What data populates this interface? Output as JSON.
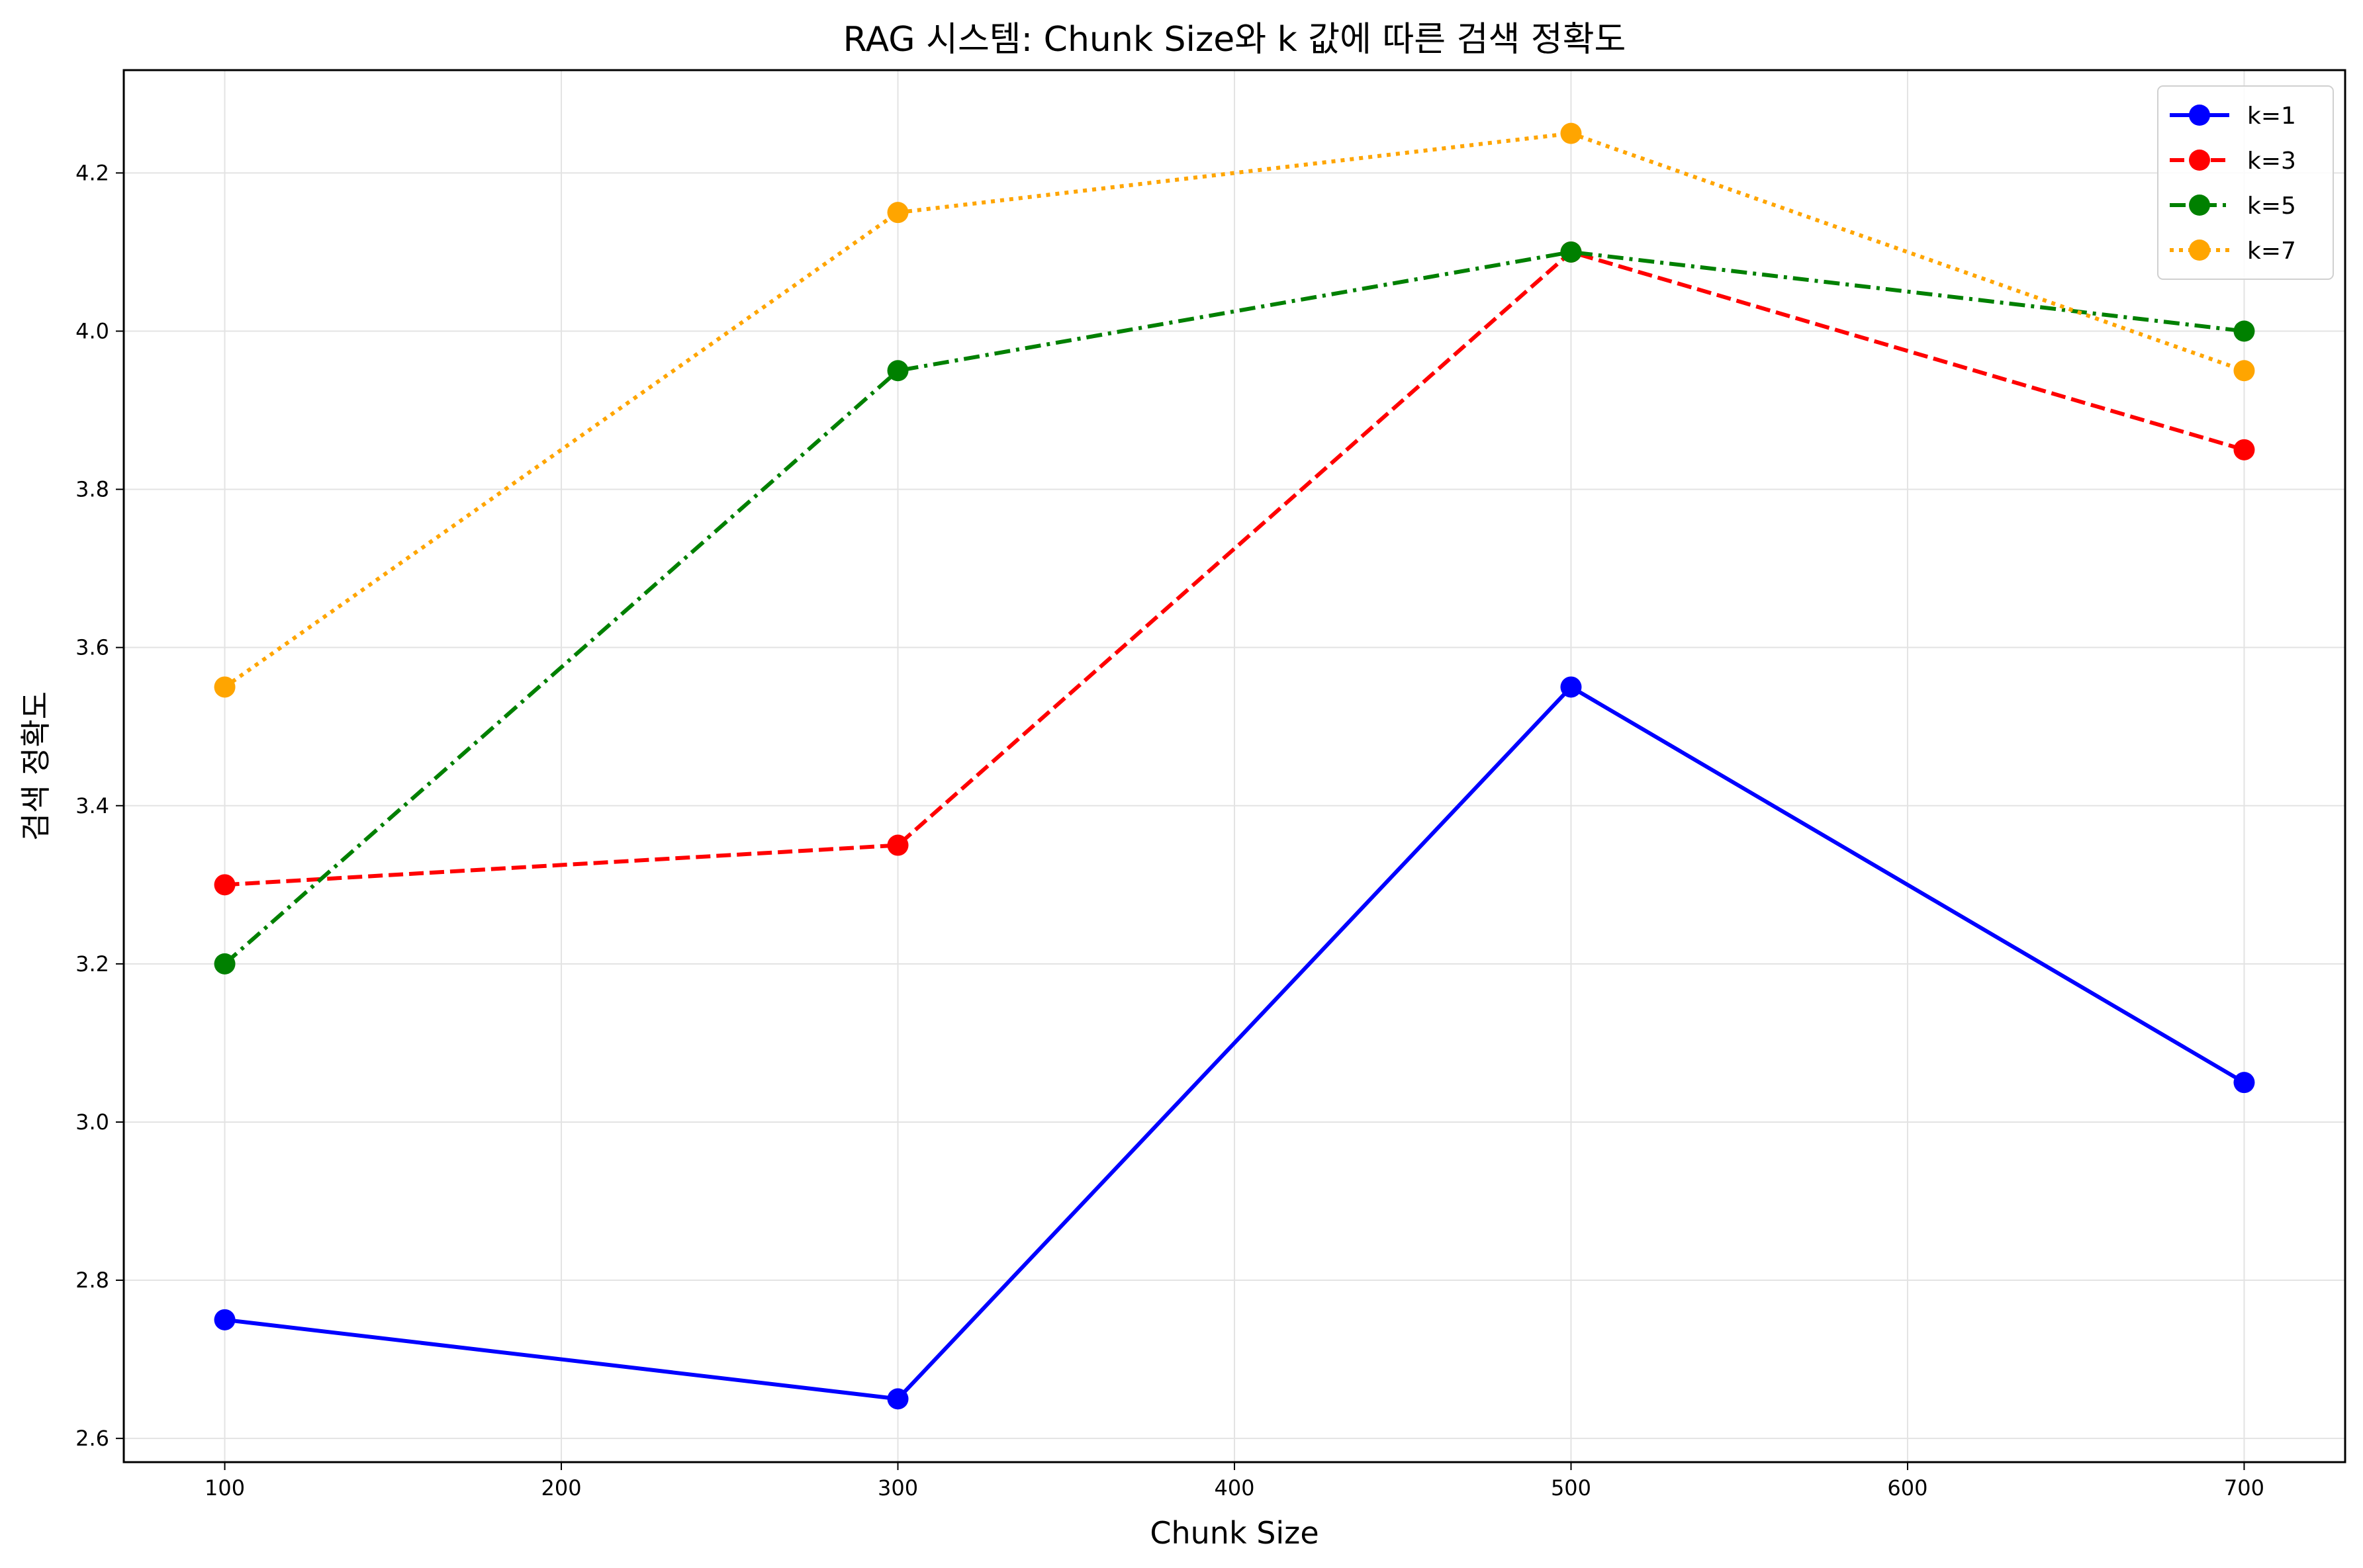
{
  "chart_data": {
    "type": "line",
    "title": "RAG 시스템: Chunk Size와 k 값에 따른 검색 정확도",
    "xlabel": "Chunk Size",
    "ylabel": "검색 정확도",
    "x": [
      100,
      300,
      500,
      700
    ],
    "xlim": [
      70,
      730
    ],
    "ylim": [
      2.57,
      4.33
    ],
    "xticks": [
      100,
      200,
      300,
      400,
      500,
      600,
      700
    ],
    "yticks": [
      2.6,
      2.8,
      3.0,
      3.2,
      3.4,
      3.6,
      3.8,
      4.0,
      4.2
    ],
    "xtick_labels": [
      "100",
      "200",
      "300",
      "400",
      "500",
      "600",
      "700"
    ],
    "ytick_labels": [
      "2.6",
      "2.8",
      "3.0",
      "3.2",
      "3.4",
      "3.6",
      "3.8",
      "4.0",
      "4.2"
    ],
    "grid": true,
    "legend_position": "top-right",
    "series": [
      {
        "name": "k=1",
        "values": [
          2.75,
          2.65,
          3.55,
          3.05
        ],
        "color": "#0000ff",
        "line_style": "solid"
      },
      {
        "name": "k=3",
        "values": [
          3.3,
          3.35,
          4.1,
          3.85
        ],
        "color": "#ff0000",
        "line_style": "dashed"
      },
      {
        "name": "k=5",
        "values": [
          3.2,
          3.95,
          4.1,
          4.0
        ],
        "color": "#008000",
        "line_style": "dashdot"
      },
      {
        "name": "k=7",
        "values": [
          3.55,
          4.15,
          4.25,
          3.95
        ],
        "color": "#ffa500",
        "line_style": "dotted"
      }
    ]
  }
}
